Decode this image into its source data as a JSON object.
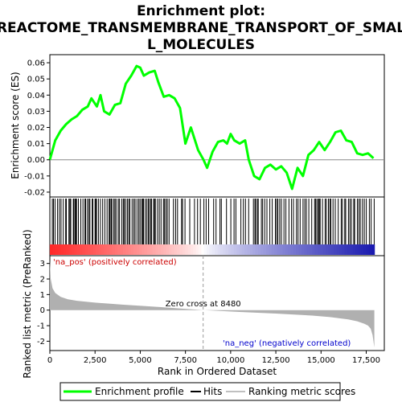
{
  "chart_data": {
    "type": "line",
    "title_lines": [
      "Enrichment plot:",
      "REACTOME_TRANSMEMBRANE_TRANSPORT_OF_SMAL",
      "L_MOLECULES"
    ],
    "xlabel": "Rank in Ordered Dataset",
    "ylabel_top": "Enrichment score (ES)",
    "ylabel_bottom": "Ranked list metric (PreRanked)",
    "x_ticks": [
      0,
      2500,
      5000,
      7500,
      10000,
      12500,
      15000,
      17500
    ],
    "x_tick_labels": [
      "0",
      "2,500",
      "5,000",
      "7,500",
      "10,000",
      "12,500",
      "15,000",
      "17,500"
    ],
    "xlim": [
      0,
      18500
    ],
    "es_ylim": [
      -0.023,
      0.065
    ],
    "es_ticks": [
      -0.02,
      -0.01,
      0.0,
      0.01,
      0.02,
      0.03,
      0.04,
      0.05,
      0.06
    ],
    "es_tick_labels": [
      "-0.02",
      "-0.01",
      "0.00",
      "0.01",
      "0.02",
      "0.03",
      "0.04",
      "0.05",
      "0.06"
    ],
    "metric_ylim": [
      -2.6,
      3.5
    ],
    "metric_ticks": [
      -2,
      -1,
      0,
      1,
      2,
      3
    ],
    "metric_tick_labels": [
      "-2",
      "-1",
      "0",
      "1",
      "2",
      "3"
    ],
    "n_genes": 17950,
    "zero_cross": 8480,
    "zero_cross_label": "Zero cross at 8480",
    "pos_label": "'na_pos' (positively correlated)",
    "neg_label": "'na_neg' (negatively correlated)",
    "series": [
      {
        "name": "Enrichment profile",
        "color": "#00ff00",
        "x": [
          0,
          300,
          600,
          900,
          1200,
          1500,
          1800,
          2100,
          2300,
          2600,
          2800,
          3000,
          3300,
          3600,
          3900,
          4200,
          4500,
          4800,
          5000,
          5200,
          5500,
          5800,
          6000,
          6300,
          6600,
          6900,
          7200,
          7500,
          7800,
          8000,
          8200,
          8500,
          8700,
          9000,
          9300,
          9600,
          9800,
          10000,
          10200,
          10500,
          10800,
          11000,
          11300,
          11600,
          11900,
          12200,
          12500,
          12800,
          13100,
          13400,
          13700,
          14000,
          14300,
          14600,
          14900,
          15200,
          15500,
          15800,
          16100,
          16400,
          16700,
          17000,
          17300,
          17600,
          17900
        ],
        "y": [
          0.0,
          0.012,
          0.018,
          0.022,
          0.025,
          0.027,
          0.031,
          0.033,
          0.038,
          0.033,
          0.04,
          0.03,
          0.028,
          0.034,
          0.035,
          0.047,
          0.052,
          0.058,
          0.057,
          0.052,
          0.054,
          0.055,
          0.048,
          0.039,
          0.04,
          0.038,
          0.032,
          0.01,
          0.02,
          0.013,
          0.006,
          0.0,
          -0.005,
          0.005,
          0.011,
          0.012,
          0.01,
          0.016,
          0.012,
          0.01,
          0.012,
          0.0,
          -0.01,
          -0.012,
          -0.005,
          -0.003,
          -0.006,
          -0.004,
          -0.008,
          -0.018,
          -0.005,
          -0.01,
          0.003,
          0.006,
          0.011,
          0.006,
          0.011,
          0.017,
          0.018,
          0.012,
          0.011,
          0.004,
          0.003,
          0.004,
          0.001
        ]
      },
      {
        "name": "Hits",
        "color": "#000000"
      },
      {
        "name": "Ranking metric scores",
        "color": "#c0c0c0"
      }
    ],
    "metric_profile": {
      "x": [
        0,
        50,
        150,
        300,
        600,
        1000,
        1500,
        2500,
        4000,
        6000,
        8480,
        10500,
        12500,
        14500,
        15500,
        16500,
        17000,
        17400,
        17600,
        17750,
        17850,
        17950
      ],
      "y": [
        3.2,
        2.0,
        1.4,
        1.1,
        0.85,
        0.7,
        0.6,
        0.48,
        0.35,
        0.2,
        0.0,
        -0.12,
        -0.22,
        -0.35,
        -0.45,
        -0.6,
        -0.72,
        -0.88,
        -1.0,
        -1.2,
        -1.6,
        -2.4
      ]
    }
  },
  "legend": {
    "items": [
      "Enrichment profile",
      "Hits",
      "Ranking metric scores"
    ]
  },
  "colors": {
    "es_line": "#00ff00",
    "metric_fill": "#b0b0b0",
    "pos_text": "#cc0000",
    "neg_text": "#0000cc",
    "zero_line": "#999999"
  }
}
